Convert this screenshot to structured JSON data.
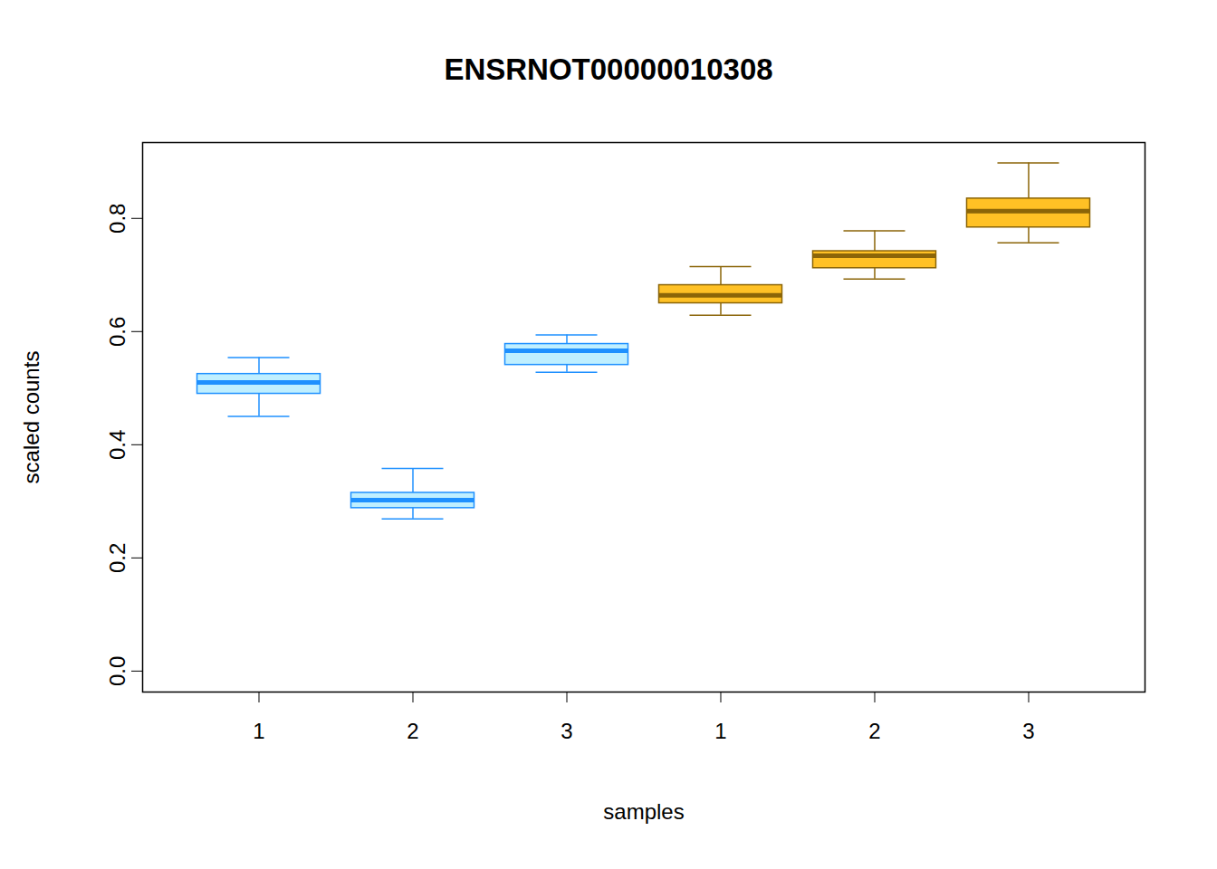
{
  "chart_data": {
    "type": "box",
    "title": "ENSRNOT00000010308",
    "x_label": "samples",
    "y_label": "scaled counts",
    "categories": [
      "1",
      "2",
      "3",
      "1",
      "2",
      "3"
    ],
    "min": [
      0.45,
      0.269,
      0.528,
      0.629,
      0.693,
      0.757
    ],
    "q1": [
      0.49,
      0.288,
      0.541,
      0.65,
      0.712,
      0.784
    ],
    "median": [
      0.51,
      0.302,
      0.566,
      0.664,
      0.734,
      0.813
    ],
    "q3": [
      0.525,
      0.315,
      0.578,
      0.682,
      0.742,
      0.835
    ],
    "max": [
      0.554,
      0.358,
      0.594,
      0.715,
      0.778,
      0.898
    ],
    "colors": [
      "#1E90FF",
      "#1E90FF",
      "#1E90FF",
      "#8B6508",
      "#8B6508",
      "#8B6508"
    ],
    "ylim": [
      -0.037,
      0.934
    ],
    "yticks": [
      {
        "value": 0,
        "label": "0.0"
      },
      0.2,
      0.4,
      0.6,
      0.8
    ]
  }
}
